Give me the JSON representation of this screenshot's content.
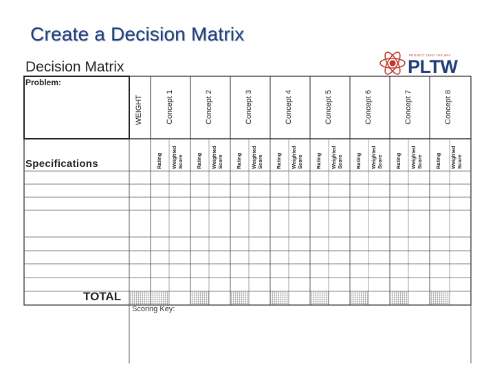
{
  "slide": {
    "title": "Create a Decision Matrix"
  },
  "sheet": {
    "title": "Decision Matrix"
  },
  "logo": {
    "brand": "PLTW",
    "tagline": "PROJECT LEAD THE WAY",
    "icon": "atom-icon"
  },
  "matrix": {
    "problem_label": "Problem:",
    "weight_label": "WEIGHT",
    "specifications_label": "Specifications",
    "concepts": [
      "Concept 1",
      "Concept 2",
      "Concept 3",
      "Concept 4",
      "Concept 5",
      "Concept 6",
      "Concept 7",
      "Concept 8"
    ],
    "rating_label": "Rating",
    "weighted_line1": "Weighted",
    "weighted_line2": "Score",
    "total_label": "TOTAL",
    "scoring_key_label": "Scoring Key:",
    "spec_row_count": 9
  }
}
